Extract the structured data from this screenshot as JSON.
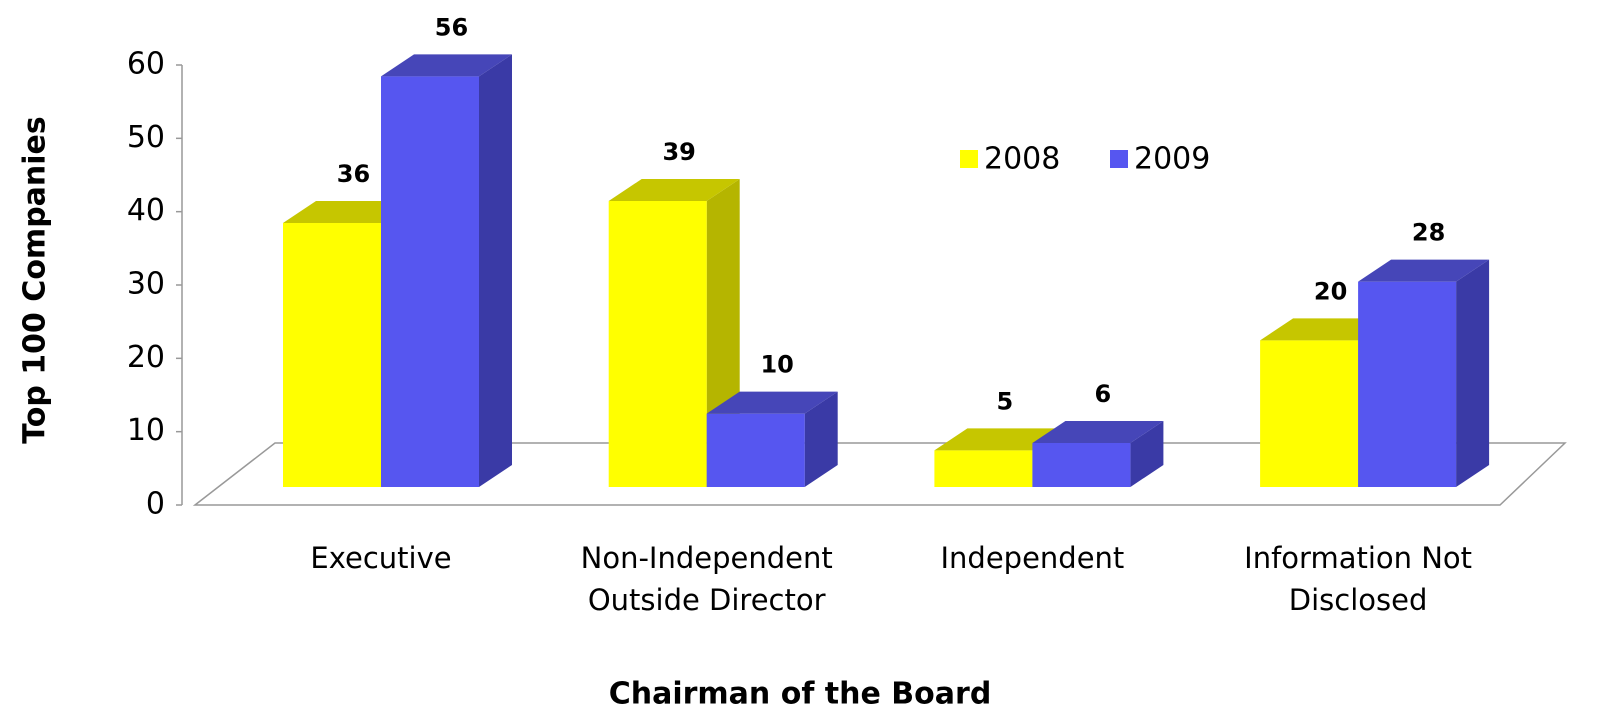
{
  "chart_data": {
    "type": "bar3d",
    "x_label": "Chairman of the Board",
    "y_label": "Top 100 Companies",
    "categories": [
      [
        "Executive"
      ],
      [
        "Non-Independent",
        "Outside Director"
      ],
      [
        "Independent"
      ],
      [
        "Information Not",
        "Disclosed"
      ]
    ],
    "series": [
      {
        "name": "2008",
        "color": "#ffff00",
        "side": "#b5b500",
        "top": "#c6c600",
        "values": [
          36,
          39,
          5,
          20
        ]
      },
      {
        "name": "2009",
        "color": "#5656f0",
        "side": "#3a3aa6",
        "top": "#4646b8",
        "values": [
          56,
          10,
          6,
          28
        ]
      }
    ],
    "ylim": [
      0,
      60
    ],
    "yticks": [
      0,
      10,
      20,
      30,
      40,
      50,
      60
    ],
    "legend": "top-right"
  }
}
